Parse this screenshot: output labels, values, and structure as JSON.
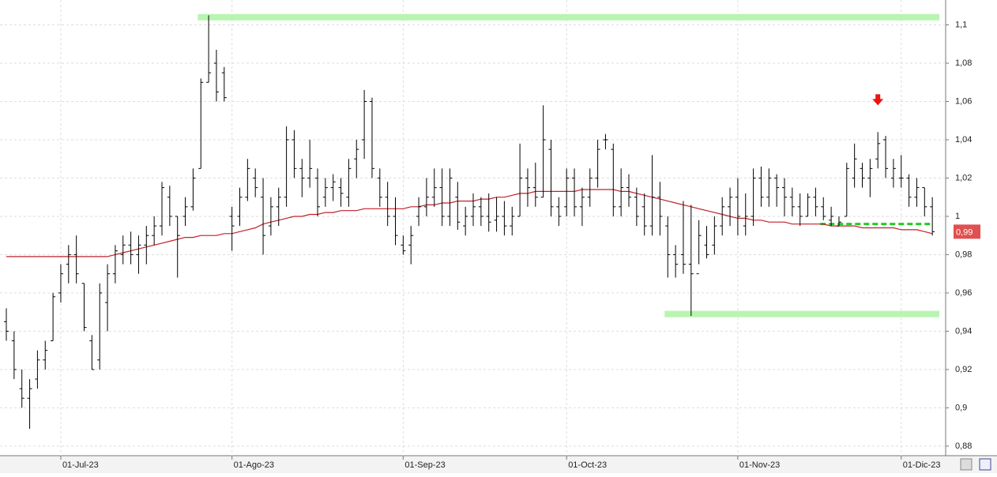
{
  "chart_data": {
    "type": "ohlc",
    "ylim": [
      0.875,
      1.113
    ],
    "yticks": [
      {
        "value": 0.88,
        "label": "0,88"
      },
      {
        "value": 0.9,
        "label": "0,9"
      },
      {
        "value": 0.92,
        "label": "0,92"
      },
      {
        "value": 0.94,
        "label": "0,94"
      },
      {
        "value": 0.96,
        "label": "0,96"
      },
      {
        "value": 0.98,
        "label": "0,98"
      },
      {
        "value": 1,
        "label": "1"
      },
      {
        "value": 1.02,
        "label": "1,02"
      },
      {
        "value": 1.04,
        "label": "1,04"
      },
      {
        "value": 1.06,
        "label": "1,06"
      },
      {
        "value": 1.08,
        "label": "1,08"
      },
      {
        "value": 1.1,
        "label": "1,1"
      }
    ],
    "x_labels": [
      {
        "index": 7,
        "label": "01-Jul-23"
      },
      {
        "index": 29,
        "label": "01-Ago-23"
      },
      {
        "index": 51,
        "label": "01-Sep-23"
      },
      {
        "index": 72,
        "label": "01-Oct-23"
      },
      {
        "index": 94,
        "label": "01-Nov-23"
      },
      {
        "index": 115,
        "label": "01-Dic-23"
      }
    ],
    "grid": true,
    "bar_color": "#000000",
    "bars": [
      [
        0.945,
        0.952,
        0.935,
        0.94
      ],
      [
        0.935,
        0.94,
        0.915,
        0.92
      ],
      [
        0.91,
        0.92,
        0.9,
        0.905
      ],
      [
        0.905,
        0.915,
        0.889,
        0.91
      ],
      [
        0.915,
        0.93,
        0.91,
        0.925
      ],
      [
        0.925,
        0.935,
        0.92,
        0.93
      ],
      [
        0.935,
        0.96,
        0.935,
        0.958
      ],
      [
        0.96,
        0.975,
        0.955,
        0.97
      ],
      [
        0.975,
        0.985,
        0.965,
        0.98
      ],
      [
        0.98,
        0.99,
        0.965,
        0.97
      ],
      [
        0.965,
        0.965,
        0.94,
        0.942
      ],
      [
        0.935,
        0.938,
        0.92,
        0.92
      ],
      [
        0.925,
        0.965,
        0.92,
        0.96
      ],
      [
        0.955,
        0.975,
        0.94,
        0.97
      ],
      [
        0.97,
        0.985,
        0.965,
        0.982
      ],
      [
        0.98,
        0.99,
        0.975,
        0.985
      ],
      [
        0.985,
        0.992,
        0.975,
        0.98
      ],
      [
        0.98,
        0.99,
        0.97,
        0.985
      ],
      [
        0.985,
        0.995,
        0.975,
        0.99
      ],
      [
        0.99,
        1.0,
        0.985,
        0.995
      ],
      [
        0.995,
        1.018,
        0.99,
        1.015
      ],
      [
        1.01,
        1.016,
        0.995,
        1.0
      ],
      [
        1.0,
        1.0,
        0.968,
        0.99
      ],
      [
        1.0,
        1.01,
        0.995,
        1.005
      ],
      [
        1.005,
        1.025,
        1.003,
        1.02
      ],
      [
        1.025,
        1.072,
        1.025,
        1.07
      ],
      [
        1.07,
        1.105,
        1.07,
        1.075
      ],
      [
        1.08,
        1.087,
        1.06,
        1.065
      ],
      [
        1.075,
        1.078,
        1.06,
        1.062
      ],
      [
        1.0,
        1.005,
        0.982,
        0.995
      ],
      [
        1.0,
        1.015,
        0.995,
        1.01
      ],
      [
        1.01,
        1.03,
        1.008,
        1.025
      ],
      [
        1.02,
        1.025,
        1.01,
        1.015
      ],
      [
        1.01,
        1.02,
        0.98,
        0.99
      ],
      [
        0.995,
        1.01,
        0.99,
        1.005
      ],
      [
        1.005,
        1.015,
        0.995,
        1.01
      ],
      [
        1.01,
        1.047,
        1.005,
        1.04
      ],
      [
        1.04,
        1.045,
        1.02,
        1.025
      ],
      [
        1.025,
        1.03,
        1.01,
        1.02
      ],
      [
        1.02,
        1.04,
        1.015,
        1.025
      ],
      [
        1.02,
        1.025,
        1.0,
        1.005
      ],
      [
        1.01,
        1.02,
        1.005,
        1.015
      ],
      [
        1.015,
        1.022,
        1.008,
        1.018
      ],
      [
        1.015,
        1.02,
        1.005,
        1.012
      ],
      [
        1.01,
        1.03,
        1.005,
        1.025
      ],
      [
        1.03,
        1.04,
        1.02,
        1.035
      ],
      [
        1.04,
        1.066,
        1.03,
        1.06
      ],
      [
        1.06,
        1.062,
        1.02,
        1.025
      ],
      [
        1.02,
        1.025,
        1.005,
        1.01
      ],
      [
        1.01,
        1.018,
        0.995,
        1.0
      ],
      [
        1.0,
        1.01,
        0.985,
        0.99
      ],
      [
        0.985,
        0.99,
        0.98,
        0.982
      ],
      [
        0.985,
        0.995,
        0.975,
        0.99
      ],
      [
        1.0,
        1.01,
        0.995,
        1.005
      ],
      [
        1.005,
        1.02,
        1.0,
        1.01
      ],
      [
        1.01,
        1.025,
        1.005,
        1.015
      ],
      [
        1.015,
        1.025,
        0.995,
        1.0
      ],
      [
        1.0,
        1.025,
        0.995,
        1.02
      ],
      [
        1.01,
        1.018,
        0.993,
        0.997
      ],
      [
        0.995,
        1.005,
        0.99,
        1.0
      ],
      [
        1.0,
        1.012,
        0.995,
        1.005
      ],
      [
        1.005,
        1.01,
        0.995,
        1.0
      ],
      [
        1.0,
        1.012,
        0.992,
        0.997
      ],
      [
        0.998,
        1.01,
        0.992,
        1.0
      ],
      [
        1.0,
        1.008,
        0.99,
        0.995
      ],
      [
        0.995,
        1.005,
        0.99,
        1.0
      ],
      [
        1.0,
        1.038,
        1.0,
        1.02
      ],
      [
        1.02,
        1.025,
        1.005,
        1.015
      ],
      [
        1.015,
        1.028,
        1.005,
        1.01
      ],
      [
        1.01,
        1.058,
        1.01,
        1.04
      ],
      [
        1.035,
        1.04,
        1.0,
        1.005
      ],
      [
        1.005,
        1.01,
        0.995,
        1.0
      ],
      [
        1.005,
        1.025,
        1.0,
        1.02
      ],
      [
        1.02,
        1.025,
        1.0,
        1.005
      ],
      [
        1.005,
        1.015,
        0.995,
        1.01
      ],
      [
        1.01,
        1.025,
        1.005,
        1.02
      ],
      [
        1.02,
        1.04,
        1.015,
        1.035
      ],
      [
        1.04,
        1.043,
        1.035,
        1.04
      ],
      [
        1.035,
        1.038,
        1.0,
        1.005
      ],
      [
        1.005,
        1.025,
        1.0,
        1.015
      ],
      [
        1.015,
        1.022,
        1.005,
        1.01
      ],
      [
        1.01,
        1.015,
        0.995,
        1.0
      ],
      [
        1.005,
        1.012,
        0.99,
        0.995
      ],
      [
        0.995,
        1.032,
        0.99,
        1.01
      ],
      [
        1.01,
        1.018,
        0.99,
        1.0
      ],
      [
        0.995,
        1.0,
        0.968,
        0.98
      ],
      [
        0.98,
        0.985,
        0.968,
        0.975
      ],
      [
        0.98,
        1.008,
        0.97,
        0.975
      ],
      [
        0.975,
        1.006,
        0.948,
        0.97
      ],
      [
        0.97,
        0.998,
        0.975,
        0.99
      ],
      [
        0.985,
        0.995,
        0.978,
        0.98
      ],
      [
        0.985,
        1.0,
        0.98,
        0.995
      ],
      [
        0.995,
        1.01,
        0.99,
        1.005
      ],
      [
        1.005,
        1.015,
        0.995,
        1.01
      ],
      [
        1.01,
        1.02,
        0.99,
        1.0
      ],
      [
        0.995,
        1.012,
        0.99,
        1.0
      ],
      [
        1.0,
        1.025,
        0.995,
        1.02
      ],
      [
        1.02,
        1.026,
        1.005,
        1.01
      ],
      [
        1.01,
        1.025,
        1.005,
        1.02
      ],
      [
        1.02,
        1.022,
        1.005,
        1.015
      ],
      [
        1.015,
        1.02,
        1.0,
        1.01
      ],
      [
        1.01,
        1.015,
        1.0,
        1.005
      ],
      [
        1.005,
        1.012,
        0.995,
        1.0
      ],
      [
        1.0,
        1.012,
        1.0,
        1.01
      ],
      [
        1.01,
        1.015,
        1.0,
        1.005
      ],
      [
        1.005,
        1.01,
        0.998,
        1.0
      ],
      [
        0.998,
        1.005,
        0.995,
        1.0
      ],
      [
        0.995,
        1.0,
        0.995,
        0.997
      ],
      [
        1.0,
        1.028,
        1.0,
        1.025
      ],
      [
        1.02,
        1.038,
        1.015,
        1.03
      ],
      [
        1.025,
        1.028,
        1.015,
        1.02
      ],
      [
        1.02,
        1.03,
        1.01,
        1.025
      ],
      [
        1.03,
        1.044,
        1.025,
        1.038
      ],
      [
        1.04,
        1.042,
        1.02,
        1.025
      ],
      [
        1.02,
        1.03,
        1.015,
        1.025
      ],
      [
        1.02,
        1.032,
        1.015,
        1.02
      ],
      [
        1.02,
        1.022,
        1.005,
        1.01
      ],
      [
        1.01,
        1.02,
        1.005,
        1.015
      ],
      [
        1.015,
        1.015,
        1.0,
        1.005
      ],
      [
        1.005,
        1.01,
        0.99,
        0.992
      ]
    ],
    "moving_average": {
      "color": "#c0202a",
      "values": [
        0.979,
        0.979,
        0.979,
        0.979,
        0.979,
        0.979,
        0.979,
        0.979,
        0.979,
        0.979,
        0.979,
        0.979,
        0.979,
        0.979,
        0.98,
        0.981,
        0.982,
        0.983,
        0.984,
        0.985,
        0.986,
        0.987,
        0.988,
        0.989,
        0.989,
        0.99,
        0.99,
        0.99,
        0.991,
        0.991,
        0.992,
        0.993,
        0.994,
        0.996,
        0.997,
        0.998,
        0.999,
        1.0,
        1.0,
        1.001,
        1.001,
        1.002,
        1.002,
        1.003,
        1.003,
        1.003,
        1.004,
        1.004,
        1.004,
        1.004,
        1.004,
        1.004,
        1.005,
        1.005,
        1.006,
        1.006,
        1.007,
        1.007,
        1.008,
        1.008,
        1.008,
        1.009,
        1.009,
        1.01,
        1.01,
        1.011,
        1.012,
        1.012,
        1.013,
        1.013,
        1.013,
        1.013,
        1.013,
        1.013,
        1.014,
        1.014,
        1.014,
        1.014,
        1.014,
        1.013,
        1.013,
        1.012,
        1.011,
        1.01,
        1.009,
        1.008,
        1.007,
        1.006,
        1.005,
        1.004,
        1.003,
        1.002,
        1.001,
        1.0,
        0.999,
        0.999,
        0.998,
        0.998,
        0.997,
        0.997,
        0.997,
        0.996,
        0.996,
        0.996,
        0.996,
        0.996,
        0.995,
        0.995,
        0.995,
        0.995,
        0.994,
        0.994,
        0.994,
        0.994,
        0.994,
        0.993,
        0.993,
        0.993,
        0.992,
        0.991
      ]
    },
    "levels": [
      {
        "value": 1.104,
        "from": 25,
        "color": "#b8f5b0",
        "style": "band"
      },
      {
        "value": 0.949,
        "from": 85,
        "color": "#b8f5b0",
        "style": "band"
      },
      {
        "value": 0.996,
        "from": 105,
        "color": "#22cc22",
        "style": "dashed"
      }
    ],
    "arrow": {
      "index": 112,
      "value": 1.058,
      "color": "#ee1111"
    },
    "last_price": {
      "value": 0.992,
      "label": "0,99",
      "color": "#e05050"
    }
  }
}
